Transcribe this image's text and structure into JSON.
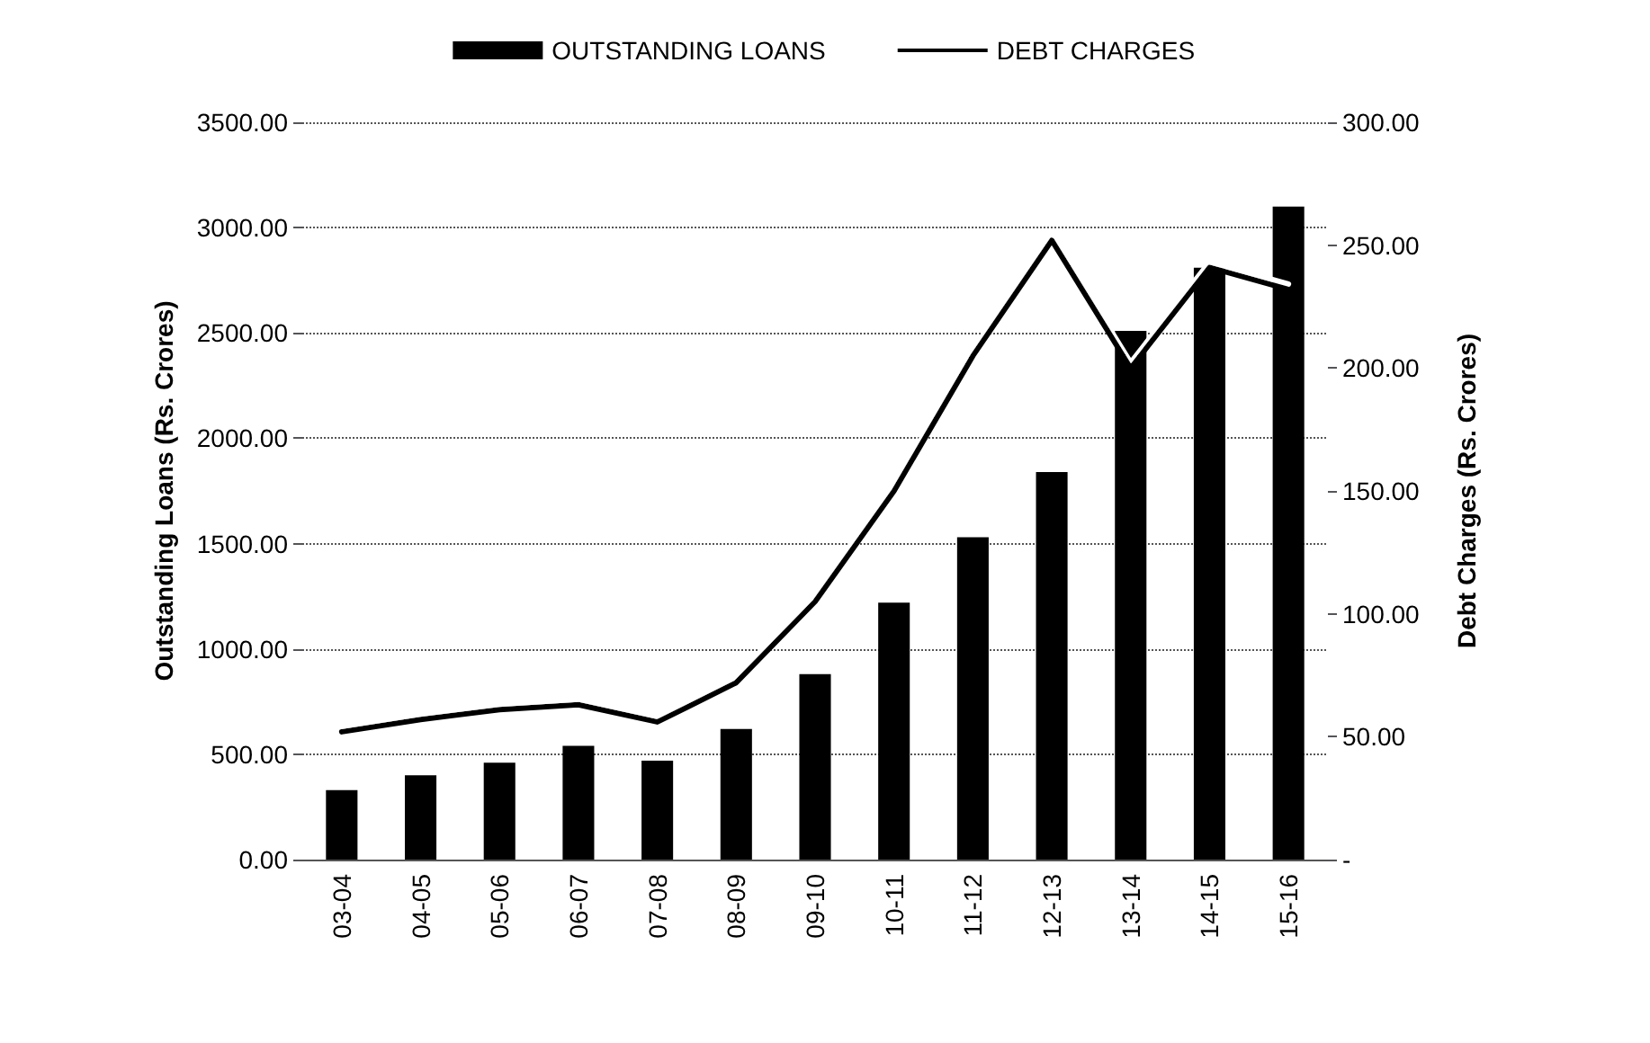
{
  "chart_data": {
    "type": "bar",
    "categories": [
      "03-04",
      "04-05",
      "05-06",
      "06-07",
      "07-08",
      "08-09",
      "09-10",
      "10-11",
      "11-12",
      "12-13",
      "13-14",
      "14-15",
      "15-16"
    ],
    "series": [
      {
        "name": "OUTSTANDING LOANS",
        "color": "#000000",
        "values": [
          330,
          400,
          460,
          540,
          470,
          620,
          880,
          1220,
          1530,
          1840,
          2510,
          2810,
          3100
        ]
      },
      {
        "name": "DEBT CHARGES",
        "type": "line",
        "axis": "y2",
        "color": "#000000",
        "values": [
          52,
          57,
          61,
          63,
          56,
          72,
          105,
          150,
          205,
          252,
          200,
          241,
          232
        ]
      }
    ],
    "ylabel": "Outstanding Loans (Rs. Crores)",
    "y2label": "Debt Charges (Rs. Crores)",
    "ylim": [
      0,
      3500
    ],
    "yticks": [
      {
        "value": 0,
        "label": "0.00"
      },
      {
        "value": 500,
        "label": "500.00"
      },
      {
        "value": 1000,
        "label": "1000.00"
      },
      {
        "value": 1500,
        "label": "1500.00"
      },
      {
        "value": 2000,
        "label": "2000.00"
      },
      {
        "value": 2500,
        "label": "2500.00"
      },
      {
        "value": 3000,
        "label": "3000.00"
      },
      {
        "value": 3500,
        "label": "3500.00"
      }
    ],
    "y2lim": [
      0,
      300
    ],
    "y2ticks": [
      {
        "value": 0,
        "label": "-"
      },
      {
        "value": 50,
        "label": "50.00"
      },
      {
        "value": 100,
        "label": "100.00"
      },
      {
        "value": 150,
        "label": "150.00"
      },
      {
        "value": 200,
        "label": "200.00"
      },
      {
        "value": 250,
        "label": "250.00"
      },
      {
        "value": 300,
        "label": "300.00"
      }
    ],
    "grid": "y",
    "legend": "top",
    "marker": "none"
  }
}
